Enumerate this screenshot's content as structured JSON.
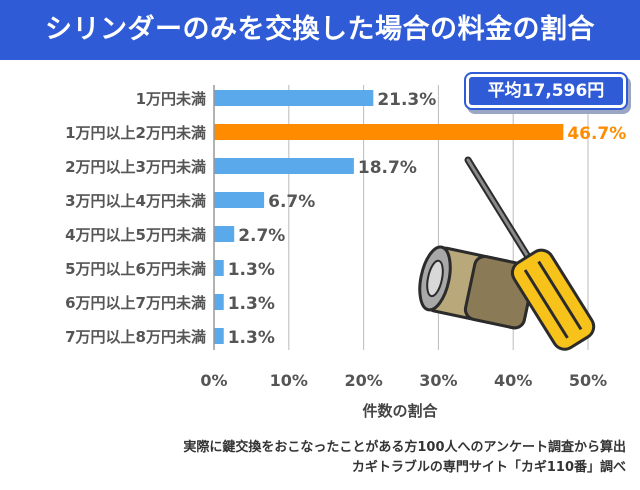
{
  "title": "シリンダーのみを交換した場合の料金の割合",
  "average_badge": "平均17,596円",
  "source": {
    "line1": "実際に鍵交換をおこなったことがある方100人へのアンケート調査から算出",
    "line2": "カギトラブルの専門サイト「カギ110番」調べ"
  },
  "colors": {
    "bar": "#5aa9ea",
    "highlight": "#ff8c00",
    "title_bg": "#2f5bd6",
    "label_text": "#555555"
  },
  "chart_data": {
    "type": "bar",
    "orientation": "horizontal",
    "categories": [
      "1万円未満",
      "1万円以上2万円未満",
      "2万円以上3万円未満",
      "3万円以上4万円未満",
      "4万円以上5万円未満",
      "5万円以上6万円未満",
      "6万円以上7万円未満",
      "7万円以上8万円未満"
    ],
    "values": [
      21.3,
      46.7,
      18.7,
      6.7,
      2.7,
      1.3,
      1.3,
      1.3
    ],
    "value_labels": [
      "21.3%",
      "46.7%",
      "18.7%",
      "6.7%",
      "2.7%",
      "1.3%",
      "1.3%",
      "1.3%"
    ],
    "highlight_index": 1,
    "xlim": [
      0,
      50
    ],
    "xticks": [
      0,
      10,
      20,
      30,
      40,
      50
    ],
    "xtick_labels": [
      "0%",
      "10%",
      "20%",
      "30%",
      "40%",
      "50%"
    ],
    "xlabel": "件数の割合",
    "grid": true
  }
}
